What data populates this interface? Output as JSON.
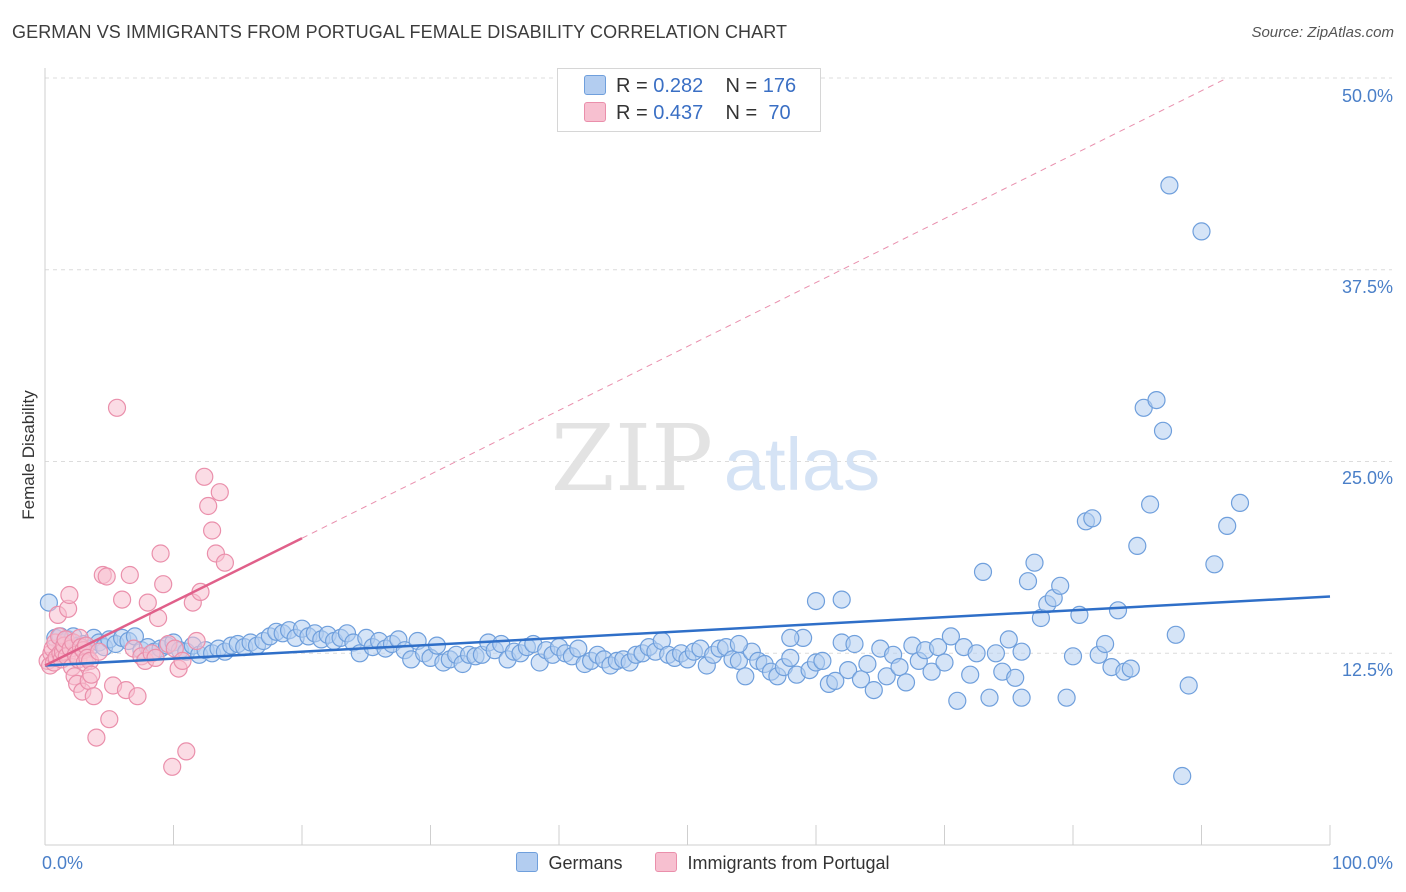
{
  "header": {
    "title": "GERMAN VS IMMIGRANTS FROM PORTUGAL FEMALE DISABILITY CORRELATION CHART",
    "source": "Source: ZipAtlas.com"
  },
  "watermark": {
    "part1": "ZIP",
    "part2": "atlas"
  },
  "colors": {
    "germans_fill": "#b3cdf0",
    "germans_stroke": "#6f9fdc",
    "germans_line": "#2f6fc8",
    "portugal_fill": "#f7c0d0",
    "portugal_stroke": "#ea8fab",
    "portugal_line": "#e0608a",
    "tick_text": "#4a7fc8"
  },
  "legend": {
    "rows": [
      {
        "r_label": "R =",
        "r_value": "0.282",
        "n_label": "N =",
        "n_value": "176"
      },
      {
        "r_label": "R =",
        "r_value": "0.437",
        "n_label": "N =",
        "n_value": "70"
      }
    ]
  },
  "chart_data": {
    "type": "scatter",
    "title": "GERMAN VS IMMIGRANTS FROM PORTUGAL FEMALE DISABILITY CORRELATION CHART",
    "xlabel": "",
    "ylabel": "Female Disability",
    "xlim": [
      0,
      100
    ],
    "ylim": [
      0,
      50
    ],
    "x_ticks": [
      "0.0%",
      "100.0%"
    ],
    "y_ticks": [
      {
        "value": 12.5,
        "label": "12.5%"
      },
      {
        "value": 25.0,
        "label": "25.0%"
      },
      {
        "value": 37.5,
        "label": "37.5%"
      },
      {
        "value": 50.0,
        "label": "50.0%"
      }
    ],
    "grid": true,
    "legend_position": "top-center",
    "series": [
      {
        "name": "Germans",
        "trend": {
          "x": [
            0,
            100
          ],
          "y": [
            11.7,
            16.2
          ],
          "style": "solid"
        },
        "points": [
          [
            0.3,
            15.8
          ],
          [
            0.8,
            13.5
          ],
          [
            1.2,
            13.6
          ],
          [
            1.5,
            13.2
          ],
          [
            1.8,
            13.4
          ],
          [
            2.2,
            13.6
          ],
          [
            2.6,
            13.0
          ],
          [
            3.0,
            13.1
          ],
          [
            3.4,
            12.8
          ],
          [
            3.8,
            13.5
          ],
          [
            4.2,
            13.2
          ],
          [
            4.6,
            12.9
          ],
          [
            5.0,
            13.4
          ],
          [
            5.5,
            13.1
          ],
          [
            6.0,
            13.5
          ],
          [
            6.5,
            13.3
          ],
          [
            7.0,
            13.6
          ],
          [
            7.5,
            12.7
          ],
          [
            8.0,
            12.9
          ],
          [
            8.5,
            12.6
          ],
          [
            9.0,
            12.8
          ],
          [
            9.5,
            13.0
          ],
          [
            10.0,
            13.2
          ],
          [
            10.5,
            12.7
          ],
          [
            11.0,
            12.6
          ],
          [
            11.5,
            13.0
          ],
          [
            12.0,
            12.4
          ],
          [
            12.5,
            12.7
          ],
          [
            13.0,
            12.5
          ],
          [
            13.5,
            12.8
          ],
          [
            14.0,
            12.6
          ],
          [
            14.5,
            13.0
          ],
          [
            15.0,
            13.1
          ],
          [
            15.5,
            12.9
          ],
          [
            16.0,
            13.2
          ],
          [
            16.5,
            13.0
          ],
          [
            17.0,
            13.3
          ],
          [
            17.5,
            13.6
          ],
          [
            18.0,
            13.9
          ],
          [
            18.5,
            13.8
          ],
          [
            19.0,
            14.0
          ],
          [
            19.5,
            13.5
          ],
          [
            20.0,
            14.1
          ],
          [
            20.5,
            13.6
          ],
          [
            21.0,
            13.8
          ],
          [
            21.5,
            13.4
          ],
          [
            22.0,
            13.7
          ],
          [
            22.5,
            13.3
          ],
          [
            23.0,
            13.5
          ],
          [
            23.5,
            13.8
          ],
          [
            24.0,
            13.2
          ],
          [
            24.5,
            12.5
          ],
          [
            25.0,
            13.5
          ],
          [
            25.5,
            12.9
          ],
          [
            26.0,
            13.3
          ],
          [
            26.5,
            12.8
          ],
          [
            27.0,
            13.1
          ],
          [
            27.5,
            13.4
          ],
          [
            28.0,
            12.7
          ],
          [
            28.5,
            12.1
          ],
          [
            29.0,
            13.3
          ],
          [
            29.5,
            12.5
          ],
          [
            30.0,
            12.2
          ],
          [
            30.5,
            13.0
          ],
          [
            31.0,
            11.9
          ],
          [
            31.5,
            12.1
          ],
          [
            32.0,
            12.4
          ],
          [
            32.5,
            11.8
          ],
          [
            33.0,
            12.4
          ],
          [
            33.5,
            12.3
          ],
          [
            34.0,
            12.4
          ],
          [
            34.5,
            13.2
          ],
          [
            35.0,
            12.7
          ],
          [
            35.5,
            13.1
          ],
          [
            36.0,
            12.1
          ],
          [
            36.5,
            12.6
          ],
          [
            37.0,
            12.5
          ],
          [
            37.5,
            12.9
          ],
          [
            38.0,
            13.1
          ],
          [
            38.5,
            11.9
          ],
          [
            39.0,
            12.7
          ],
          [
            39.5,
            12.4
          ],
          [
            40.0,
            12.9
          ],
          [
            40.5,
            12.5
          ],
          [
            41.0,
            12.3
          ],
          [
            41.5,
            12.8
          ],
          [
            42.0,
            11.8
          ],
          [
            42.5,
            12.0
          ],
          [
            43.0,
            12.4
          ],
          [
            43.5,
            12.1
          ],
          [
            44.0,
            11.7
          ],
          [
            44.5,
            12.0
          ],
          [
            45.0,
            12.1
          ],
          [
            45.5,
            11.9
          ],
          [
            46.0,
            12.4
          ],
          [
            46.5,
            12.5
          ],
          [
            47.0,
            12.9
          ],
          [
            47.5,
            12.6
          ],
          [
            48.0,
            13.3
          ],
          [
            48.5,
            12.4
          ],
          [
            49.0,
            12.2
          ],
          [
            49.5,
            12.5
          ],
          [
            50.0,
            12.1
          ],
          [
            50.5,
            12.6
          ],
          [
            51.0,
            12.8
          ],
          [
            51.5,
            11.7
          ],
          [
            52.0,
            12.4
          ],
          [
            52.5,
            12.8
          ],
          [
            53.0,
            12.9
          ],
          [
            53.5,
            12.1
          ],
          [
            54.0,
            12.0
          ],
          [
            54.5,
            11.0
          ],
          [
            55.0,
            12.6
          ],
          [
            55.5,
            12.0
          ],
          [
            56.0,
            11.8
          ],
          [
            56.5,
            11.3
          ],
          [
            57.0,
            11.0
          ],
          [
            57.5,
            11.6
          ],
          [
            58.0,
            12.2
          ],
          [
            58.5,
            11.1
          ],
          [
            59.0,
            13.5
          ],
          [
            59.5,
            11.4
          ],
          [
            60.0,
            11.9
          ],
          [
            60.5,
            12.0
          ],
          [
            61.0,
            10.5
          ],
          [
            61.5,
            10.7
          ],
          [
            62.0,
            13.2
          ],
          [
            62.5,
            11.4
          ],
          [
            63.0,
            13.1
          ],
          [
            63.5,
            10.8
          ],
          [
            64.0,
            11.8
          ],
          [
            64.5,
            10.1
          ],
          [
            65.0,
            12.8
          ],
          [
            65.5,
            11.0
          ],
          [
            66.0,
            12.4
          ],
          [
            66.5,
            11.6
          ],
          [
            67.0,
            10.6
          ],
          [
            67.5,
            13.0
          ],
          [
            68.0,
            12.0
          ],
          [
            68.5,
            12.7
          ],
          [
            69.0,
            11.3
          ],
          [
            69.5,
            12.9
          ],
          [
            70.0,
            11.9
          ],
          [
            70.5,
            13.6
          ],
          [
            71.0,
            9.4
          ],
          [
            71.5,
            12.9
          ],
          [
            72.0,
            11.1
          ],
          [
            72.5,
            12.5
          ],
          [
            73.0,
            17.8
          ],
          [
            73.5,
            9.6
          ],
          [
            74.0,
            12.5
          ],
          [
            74.5,
            11.3
          ],
          [
            75.0,
            13.4
          ],
          [
            75.5,
            10.9
          ],
          [
            76.0,
            9.6
          ],
          [
            76.5,
            17.2
          ],
          [
            77.0,
            18.4
          ],
          [
            77.5,
            14.8
          ],
          [
            78.0,
            15.7
          ],
          [
            78.5,
            16.1
          ],
          [
            79.0,
            16.9
          ],
          [
            79.5,
            9.6
          ],
          [
            80.0,
            12.3
          ],
          [
            80.5,
            15.0
          ],
          [
            81.0,
            21.1
          ],
          [
            81.5,
            21.3
          ],
          [
            82.0,
            12.4
          ],
          [
            82.5,
            13.1
          ],
          [
            83.0,
            11.6
          ],
          [
            83.5,
            15.3
          ],
          [
            84.0,
            11.3
          ],
          [
            84.5,
            11.5
          ],
          [
            85.0,
            19.5
          ],
          [
            85.5,
            28.5
          ],
          [
            86.0,
            22.2
          ],
          [
            86.5,
            29.0
          ],
          [
            87.0,
            27.0
          ],
          [
            87.5,
            43.0
          ],
          [
            88.0,
            13.7
          ],
          [
            88.5,
            4.5
          ],
          [
            89.0,
            10.4
          ],
          [
            90.0,
            40.0
          ],
          [
            91.0,
            18.3
          ],
          [
            92.0,
            20.8
          ],
          [
            93.0,
            22.3
          ],
          [
            60.0,
            15.9
          ],
          [
            62.0,
            16.0
          ],
          [
            54.0,
            13.1
          ],
          [
            58.0,
            13.5
          ],
          [
            76.0,
            12.6
          ]
        ]
      },
      {
        "name": "Immigrants from Portugal",
        "trend": {
          "x": [
            0,
            20
          ],
          "y": [
            11.7,
            20.0
          ],
          "style": "solid",
          "extended_to": [
            92,
            50
          ],
          "extended_style": "dashed"
        },
        "points": [
          [
            0.2,
            12.0
          ],
          [
            0.4,
            11.7
          ],
          [
            0.5,
            12.5
          ],
          [
            0.6,
            12.8
          ],
          [
            0.7,
            11.9
          ],
          [
            0.8,
            13.2
          ],
          [
            0.9,
            12.2
          ],
          [
            1.0,
            15.0
          ],
          [
            1.1,
            13.6
          ],
          [
            1.2,
            12.5
          ],
          [
            1.3,
            12.1
          ],
          [
            1.4,
            12.6
          ],
          [
            1.5,
            13.0
          ],
          [
            1.6,
            13.4
          ],
          [
            1.7,
            12.3
          ],
          [
            1.8,
            15.4
          ],
          [
            1.9,
            16.3
          ],
          [
            2.0,
            12.8
          ],
          [
            2.1,
            11.6
          ],
          [
            2.2,
            13.2
          ],
          [
            2.3,
            11.0
          ],
          [
            2.4,
            12.4
          ],
          [
            2.5,
            10.5
          ],
          [
            2.6,
            12.1
          ],
          [
            2.7,
            13.5
          ],
          [
            2.8,
            12.9
          ],
          [
            2.9,
            10.0
          ],
          [
            3.0,
            12.7
          ],
          [
            3.1,
            11.9
          ],
          [
            3.2,
            13.0
          ],
          [
            3.3,
            12.2
          ],
          [
            3.4,
            10.7
          ],
          [
            3.5,
            12.0
          ],
          [
            3.6,
            11.1
          ],
          [
            3.8,
            9.7
          ],
          [
            4.0,
            7.0
          ],
          [
            4.2,
            12.6
          ],
          [
            4.5,
            17.6
          ],
          [
            4.8,
            17.5
          ],
          [
            5.0,
            8.2
          ],
          [
            5.3,
            10.4
          ],
          [
            5.6,
            28.5
          ],
          [
            6.0,
            16.0
          ],
          [
            6.3,
            10.1
          ],
          [
            6.6,
            17.6
          ],
          [
            6.9,
            12.8
          ],
          [
            7.2,
            9.7
          ],
          [
            7.5,
            12.3
          ],
          [
            7.8,
            12.0
          ],
          [
            8.0,
            15.8
          ],
          [
            8.3,
            12.5
          ],
          [
            8.6,
            12.2
          ],
          [
            8.8,
            14.8
          ],
          [
            9.0,
            19.0
          ],
          [
            9.2,
            17.0
          ],
          [
            9.6,
            13.1
          ],
          [
            9.9,
            5.1
          ],
          [
            10.1,
            12.8
          ],
          [
            10.4,
            11.5
          ],
          [
            10.7,
            12.0
          ],
          [
            11.0,
            6.1
          ],
          [
            11.5,
            15.8
          ],
          [
            11.8,
            13.3
          ],
          [
            12.1,
            16.5
          ],
          [
            12.4,
            24.0
          ],
          [
            12.7,
            22.1
          ],
          [
            13.0,
            20.5
          ],
          [
            13.3,
            19.0
          ],
          [
            13.6,
            23.0
          ],
          [
            14.0,
            18.4
          ]
        ]
      }
    ]
  },
  "bottom_legend": {
    "items": [
      {
        "label": "Germans"
      },
      {
        "label": "Immigrants from Portugal"
      }
    ]
  }
}
